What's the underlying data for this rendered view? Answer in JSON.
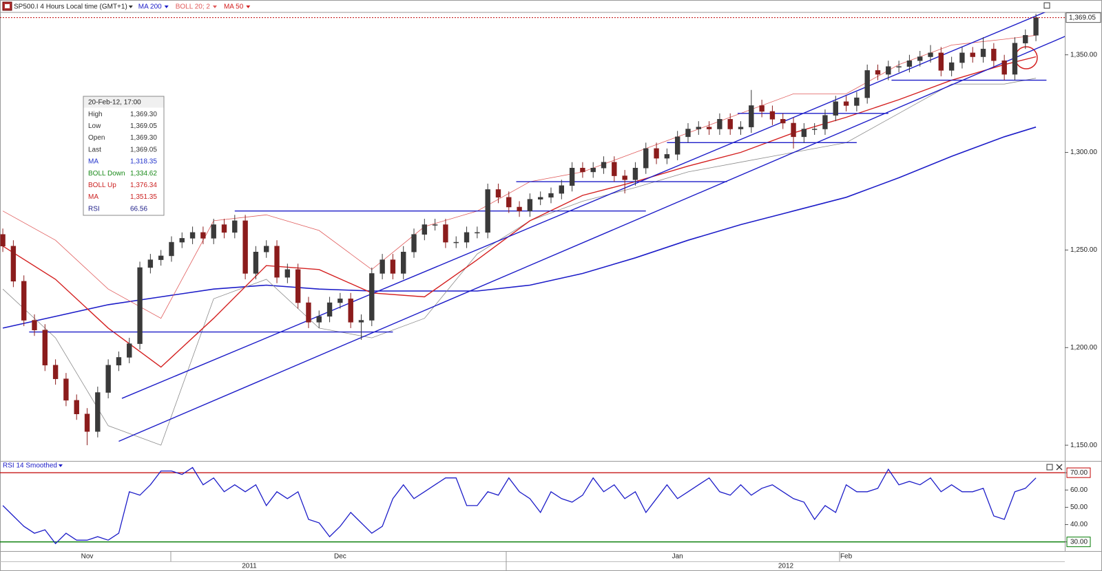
{
  "header": {
    "symbol": "SP500.I 4 Hours Local time (GMT+1)"
  },
  "info_box": {
    "title": "20-Feb-12, 17:00",
    "rows": [
      {
        "label": "High",
        "value": "1,369.30",
        "color": "#333333"
      },
      {
        "label": "Low",
        "value": "1,369.05",
        "color": "#333333"
      },
      {
        "label": "Open",
        "value": "1,369.30",
        "color": "#333333"
      },
      {
        "label": "Last",
        "value": "1,369.05",
        "color": "#333333"
      },
      {
        "label": "MA",
        "value": "1,318.35",
        "color": "#2233cc"
      },
      {
        "label": "BOLL Down",
        "value": "1,334.62",
        "color": "#1a8a1a"
      },
      {
        "label": "BOLL Up",
        "value": "1,376.34",
        "color": "#cc2222"
      },
      {
        "label": "MA",
        "value": "1,351.35",
        "color": "#cc2222"
      },
      {
        "label": "RSI",
        "value": "66.56",
        "color": "#22228a"
      }
    ]
  },
  "chart_data": [
    {
      "type": "candlestick",
      "up_color": "#3a3a3a",
      "down_color": "#8b1c1c",
      "ylim": [
        1142.4,
        1371.6
      ],
      "yticks": [
        {
          "value": 1150,
          "label": "1,150.00"
        },
        {
          "value": 1200,
          "label": "1,200.00"
        },
        {
          "value": 1250,
          "label": "1,250.00"
        },
        {
          "value": 1300,
          "label": "1,300.00"
        },
        {
          "value": 1350,
          "label": "1,350.00"
        }
      ],
      "last_price": {
        "value": 1369.05,
        "label": "1,369.05"
      },
      "categories": [
        null,
        null,
        null,
        null,
        null,
        null,
        null,
        null,
        "Nov",
        null,
        null,
        null,
        null,
        null,
        null,
        null,
        null,
        null,
        null,
        null,
        null,
        null,
        null,
        null,
        null,
        null,
        null,
        null,
        null,
        null,
        null,
        null,
        "Dec",
        null,
        null,
        null,
        null,
        null,
        null,
        null,
        null,
        null,
        null,
        null,
        null,
        null,
        null,
        null,
        null,
        null,
        null,
        null,
        null,
        null,
        null,
        null,
        null,
        null,
        null,
        null,
        null,
        null,
        null,
        null,
        "Jan",
        null,
        null,
        null,
        null,
        null,
        null,
        null,
        null,
        null,
        null,
        null,
        null,
        null,
        null,
        null,
        "Feb",
        null,
        null,
        null,
        null,
        null,
        null,
        null,
        null,
        null,
        null,
        null,
        null,
        null,
        null,
        null,
        null,
        null,
        null
      ],
      "year_labels": [
        "2011",
        "2012"
      ],
      "candles": [
        [
          1258,
          1261,
          1249,
          1252
        ],
        [
          1252,
          1255,
          1231,
          1234
        ],
        [
          1234,
          1237,
          1211,
          1214
        ],
        [
          1214,
          1217,
          1206,
          1209
        ],
        [
          1209,
          1212,
          1188,
          1191
        ],
        [
          1191,
          1194,
          1181,
          1184
        ],
        [
          1184,
          1187,
          1170,
          1173
        ],
        [
          1173,
          1176,
          1163,
          1166
        ],
        [
          1166,
          1169,
          1150,
          1157
        ],
        [
          1157,
          1180,
          1154,
          1177
        ],
        [
          1177,
          1194,
          1174,
          1191
        ],
        [
          1191,
          1198,
          1188,
          1195
        ],
        [
          1195,
          1205,
          1192,
          1202
        ],
        [
          1202,
          1244,
          1199,
          1241
        ],
        [
          1241,
          1248,
          1238,
          1245
        ],
        [
          1245,
          1250,
          1242,
          1247
        ],
        [
          1247,
          1257,
          1244,
          1254
        ],
        [
          1254,
          1259,
          1251,
          1256
        ],
        [
          1256,
          1262,
          1253,
          1259
        ],
        [
          1259,
          1262,
          1253,
          1256
        ],
        [
          1256,
          1266,
          1253,
          1263
        ],
        [
          1263,
          1266,
          1256,
          1259
        ],
        [
          1259,
          1268,
          1256,
          1265
        ],
        [
          1265,
          1268,
          1235,
          1238
        ],
        [
          1238,
          1252,
          1235,
          1249
        ],
        [
          1249,
          1255,
          1246,
          1252
        ],
        [
          1252,
          1255,
          1233,
          1236
        ],
        [
          1236,
          1243,
          1233,
          1240
        ],
        [
          1240,
          1243,
          1220,
          1223
        ],
        [
          1223,
          1226,
          1210,
          1213
        ],
        [
          1213,
          1219,
          1210,
          1216
        ],
        [
          1216,
          1226,
          1213,
          1223
        ],
        [
          1223,
          1228,
          1220,
          1225
        ],
        [
          1225,
          1228,
          1210,
          1213
        ],
        [
          1213,
          1217,
          1204,
          1214
        ],
        [
          1214,
          1241,
          1211,
          1238
        ],
        [
          1238,
          1248,
          1235,
          1245
        ],
        [
          1245,
          1248,
          1235,
          1238
        ],
        [
          1238,
          1252,
          1235,
          1249
        ],
        [
          1249,
          1261,
          1246,
          1258
        ],
        [
          1258,
          1266,
          1255,
          1263
        ],
        [
          1263,
          1266,
          1260,
          1263
        ],
        [
          1263,
          1266,
          1251,
          1254
        ],
        [
          1254,
          1257,
          1251,
          1254
        ],
        [
          1254,
          1262,
          1251,
          1259
        ],
        [
          1259,
          1262,
          1256,
          1259
        ],
        [
          1259,
          1284,
          1256,
          1281
        ],
        [
          1281,
          1284,
          1274,
          1277
        ],
        [
          1277,
          1280,
          1269,
          1272
        ],
        [
          1272,
          1275,
          1267,
          1270
        ],
        [
          1270,
          1279,
          1267,
          1276
        ],
        [
          1276,
          1280,
          1273,
          1277
        ],
        [
          1277,
          1282,
          1274,
          1279
        ],
        [
          1279,
          1286,
          1276,
          1283
        ],
        [
          1283,
          1295,
          1280,
          1292
        ],
        [
          1292,
          1295,
          1287,
          1290
        ],
        [
          1290,
          1295,
          1287,
          1292
        ],
        [
          1292,
          1298,
          1289,
          1295
        ],
        [
          1295,
          1298,
          1285,
          1288
        ],
        [
          1288,
          1291,
          1279,
          1286
        ],
        [
          1286,
          1295,
          1283,
          1292
        ],
        [
          1292,
          1305,
          1289,
          1302
        ],
        [
          1302,
          1305,
          1294,
          1297
        ],
        [
          1297,
          1302,
          1294,
          1299
        ],
        [
          1299,
          1311,
          1296,
          1308
        ],
        [
          1308,
          1315,
          1305,
          1312
        ],
        [
          1312,
          1316,
          1309,
          1313
        ],
        [
          1313,
          1316,
          1309,
          1312
        ],
        [
          1312,
          1320,
          1309,
          1317
        ],
        [
          1317,
          1320,
          1309,
          1312
        ],
        [
          1312,
          1316,
          1309,
          1313
        ],
        [
          1313,
          1332,
          1310,
          1324
        ],
        [
          1324,
          1327,
          1318,
          1321
        ],
        [
          1321,
          1324,
          1314,
          1317
        ],
        [
          1317,
          1320,
          1312,
          1315
        ],
        [
          1315,
          1318,
          1302,
          1308
        ],
        [
          1308,
          1315,
          1305,
          1312
        ],
        [
          1312,
          1315,
          1309,
          1312
        ],
        [
          1312,
          1322,
          1309,
          1319
        ],
        [
          1319,
          1329,
          1316,
          1326
        ],
        [
          1326,
          1329,
          1321,
          1324
        ],
        [
          1324,
          1331,
          1321,
          1328
        ],
        [
          1328,
          1345,
          1325,
          1342
        ],
        [
          1342,
          1345,
          1337,
          1340
        ],
        [
          1340,
          1347,
          1337,
          1344
        ],
        [
          1344,
          1347,
          1341,
          1344
        ],
        [
          1344,
          1350,
          1341,
          1347
        ],
        [
          1347,
          1352,
          1344,
          1349
        ],
        [
          1349,
          1355,
          1346,
          1351
        ],
        [
          1351,
          1354,
          1339,
          1342
        ],
        [
          1342,
          1349,
          1339,
          1346
        ],
        [
          1346,
          1354,
          1343,
          1351
        ],
        [
          1351,
          1354,
          1346,
          1349
        ],
        [
          1349,
          1359,
          1346,
          1353
        ],
        [
          1353,
          1356,
          1344,
          1347
        ],
        [
          1347,
          1350,
          1337,
          1340
        ],
        [
          1340,
          1359,
          1337,
          1356
        ],
        [
          1356,
          1363,
          1353,
          1360
        ],
        [
          1360,
          1371,
          1357,
          1369.05
        ]
      ],
      "overlays": {
        "x": [
          0,
          5,
          10,
          15,
          20,
          25,
          30,
          35,
          40,
          45,
          50,
          55,
          60,
          65,
          70,
          75,
          80,
          85,
          90,
          95,
          98
        ],
        "series": [
          {
            "name": "MA 200",
            "color": "#1c1cc8",
            "values": [
              1210,
              1216,
              1222,
              1226,
              1230,
              1232,
              1230,
              1229,
              1229,
              1229,
              1232,
              1238,
              1246,
              1255,
              1263,
              1270,
              1277,
              1287,
              1298,
              1308,
              1313
            ]
          },
          {
            "name": "BOLL 20; 2",
            "color": "#e05a5a",
            "lower_color": "#8a8a8a",
            "upper": [
              1270,
              1255,
              1230,
              1215,
              1265,
              1268,
              1260,
              1240,
              1262,
              1270,
              1285,
              1290,
              1300,
              1310,
              1320,
              1330,
              1330,
              1345,
              1355,
              1358,
              1360
            ],
            "lower": [
              1230,
              1205,
              1160,
              1150,
              1225,
              1235,
              1210,
              1205,
              1215,
              1248,
              1265,
              1275,
              1282,
              1290,
              1295,
              1300,
              1305,
              1320,
              1335,
              1335,
              1338
            ]
          },
          {
            "name": "MA 50",
            "color": "#d42020",
            "values": [
              1252,
              1235,
              1210,
              1190,
              1215,
              1242,
              1240,
              1228,
              1226,
              1245,
              1265,
              1278,
              1285,
              1293,
              1300,
              1310,
              1318,
              1327,
              1337,
              1345,
              1349
            ]
          }
        ]
      },
      "trendline_color": "#1c1cc8",
      "trendlines": [
        [
          2.5,
          1208,
          37,
          1208
        ],
        [
          22,
          1270,
          61,
          1270
        ],
        [
          48.7,
          1285,
          68.7,
          1285
        ],
        [
          63,
          1305,
          81,
          1305
        ],
        [
          69.7,
          1320,
          84,
          1320
        ],
        [
          84.3,
          1337,
          99,
          1337
        ],
        [
          11.3,
          1174,
          100.7,
          1376
        ],
        [
          11,
          1152,
          101,
          1360
        ]
      ]
    },
    {
      "type": "line",
      "ylim": [
        24.5,
        76.5
      ],
      "yticks": [
        {
          "value": 30,
          "label": "30.00"
        },
        {
          "value": 40,
          "label": "40.00"
        },
        {
          "value": 50,
          "label": "50.00"
        },
        {
          "value": 60,
          "label": "60.00"
        },
        {
          "value": 70,
          "label": "70.00"
        }
      ],
      "levels": [
        {
          "value": 70,
          "color": "#c00000"
        },
        {
          "value": 30,
          "color": "#007a00"
        }
      ],
      "series": [
        {
          "name": "RSI 14 Smoothed",
          "color": "#1c1cc8",
          "values": [
            51,
            45,
            39,
            35,
            37,
            29,
            35,
            31,
            31,
            33,
            31,
            35,
            59,
            57,
            63,
            71,
            71,
            69,
            73,
            63,
            67,
            59,
            63,
            59,
            63,
            51,
            59,
            55,
            59,
            43,
            41,
            33,
            39,
            47,
            41,
            35,
            39,
            55,
            63,
            55,
            59,
            63,
            67,
            67,
            51,
            51,
            59,
            57,
            67,
            59,
            55,
            47,
            59,
            55,
            53,
            57,
            67,
            59,
            63,
            55,
            59,
            47,
            55,
            63,
            55,
            59,
            63,
            67,
            59,
            57,
            63,
            57,
            61,
            63,
            59,
            55,
            53,
            43,
            51,
            47,
            63,
            59,
            59,
            61,
            72,
            63,
            65,
            63,
            67,
            59,
            63,
            59,
            59,
            61,
            45,
            43,
            59,
            61,
            67
          ]
        }
      ]
    }
  ]
}
